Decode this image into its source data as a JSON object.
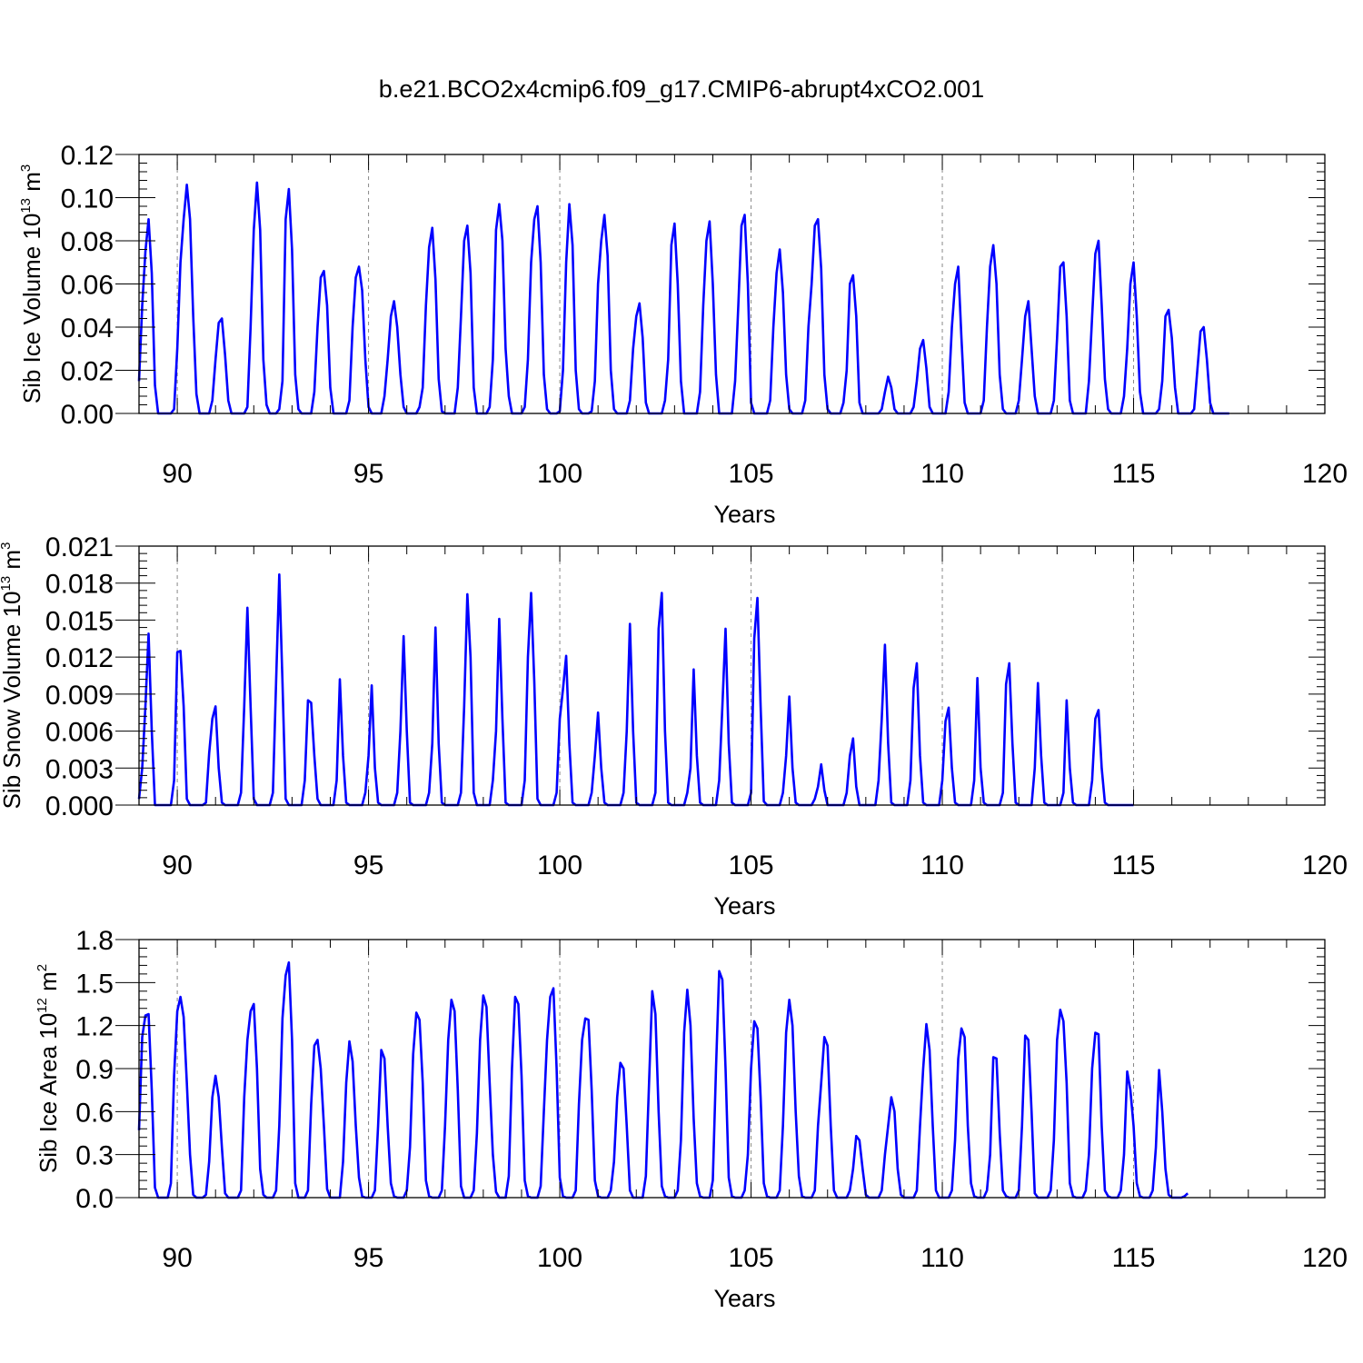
{
  "title": "b.e21.BCO2x4cmip6.f09_g17.CMIP6-abrupt4xCO2.001",
  "style": {
    "line_color": "#0000ff",
    "axis_color": "#000000",
    "grid_color": "#888888"
  },
  "chart_data": [
    {
      "type": "line",
      "ylabel": {
        "text": "Sib Ice Volume 10",
        "exp": "13",
        "unit_text": " m",
        "unit_exp": "3"
      },
      "xlabel": "Years",
      "xlim": [
        89,
        120
      ],
      "ylim": [
        0,
        0.12
      ],
      "xticks": [
        90,
        95,
        100,
        105,
        110,
        115,
        120
      ],
      "xtick_labels": [
        "90",
        "95",
        "100",
        "105",
        "110",
        "115",
        "120"
      ],
      "yticks": [
        0,
        0.02,
        0.04,
        0.06,
        0.08,
        0.1,
        0.12
      ],
      "ytick_labels": [
        "0.00",
        "0.02",
        "0.04",
        "0.06",
        "0.08",
        "0.10",
        "0.12"
      ],
      "grid": "vertical dashed at 5-year ticks",
      "start_year": 89.0,
      "series": [
        {
          "values": [
            0.015,
            0.05,
            0.075,
            0.09,
            0.065,
            0.013,
            0,
            0,
            0,
            0,
            0,
            0.002,
            0.03,
            0.07,
            0.09,
            0.106,
            0.09,
            0.045,
            0.009,
            0,
            0,
            0,
            0,
            0.006,
            0.025,
            0.042,
            0.044,
            0.027,
            0.006,
            0,
            0,
            0,
            0,
            0,
            0.003,
            0.04,
            0.085,
            0.107,
            0.085,
            0.025,
            0.004,
            0,
            0,
            0,
            0.002,
            0.015,
            0.09,
            0.104,
            0.076,
            0.018,
            0.002,
            0,
            0,
            0,
            0,
            0.01,
            0.04,
            0.063,
            0.066,
            0.05,
            0.012,
            0,
            0,
            0,
            0,
            0,
            0.006,
            0.04,
            0.063,
            0.068,
            0.057,
            0.025,
            0.003,
            0,
            0,
            0,
            0,
            0.008,
            0.025,
            0.045,
            0.052,
            0.04,
            0.018,
            0.003,
            0,
            0,
            0,
            0,
            0.003,
            0.012,
            0.05,
            0.077,
            0.086,
            0.062,
            0.016,
            0.001,
            0,
            0,
            0,
            0,
            0.012,
            0.045,
            0.08,
            0.087,
            0.065,
            0.012,
            0,
            0,
            0,
            0,
            0.003,
            0.025,
            0.085,
            0.097,
            0.08,
            0.03,
            0.008,
            0,
            0,
            0,
            0,
            0.003,
            0.025,
            0.07,
            0.09,
            0.096,
            0.07,
            0.018,
            0.002,
            0,
            0,
            0,
            0.001,
            0.02,
            0.07,
            0.097,
            0.078,
            0.02,
            0.002,
            0,
            0,
            0,
            0.001,
            0.015,
            0.06,
            0.08,
            0.092,
            0.073,
            0.02,
            0.002,
            0,
            0,
            0,
            0,
            0.006,
            0.03,
            0.045,
            0.051,
            0.035,
            0.005,
            0,
            0,
            0,
            0,
            0,
            0.006,
            0.025,
            0.078,
            0.088,
            0.06,
            0.015,
            0,
            0,
            0,
            0,
            0,
            0.01,
            0.05,
            0.08,
            0.089,
            0.06,
            0.018,
            0,
            0,
            0,
            0,
            0,
            0.015,
            0.05,
            0.087,
            0.092,
            0.06,
            0.005,
            0,
            0,
            0,
            0,
            0,
            0.006,
            0.04,
            0.065,
            0.076,
            0.056,
            0.018,
            0.002,
            0,
            0,
            0,
            0,
            0.006,
            0.04,
            0.06,
            0.087,
            0.09,
            0.067,
            0.018,
            0.002,
            0,
            0,
            0,
            0,
            0.005,
            0.02,
            0.06,
            0.064,
            0.045,
            0.005,
            0,
            0,
            0,
            0,
            0,
            0,
            0.002,
            0.01,
            0.017,
            0.012,
            0.002,
            0,
            0,
            0,
            0,
            0,
            0.003,
            0.015,
            0.03,
            0.034,
            0.021,
            0.003,
            0,
            0,
            0,
            0,
            0,
            0.01,
            0.04,
            0.06,
            0.068,
            0.035,
            0.005,
            0,
            0,
            0,
            0,
            0,
            0.006,
            0.04,
            0.068,
            0.078,
            0.06,
            0.018,
            0.002,
            0,
            0,
            0,
            0,
            0.006,
            0.025,
            0.045,
            0.052,
            0.03,
            0.008,
            0,
            0,
            0,
            0,
            0,
            0.006,
            0.035,
            0.068,
            0.07,
            0.045,
            0.006,
            0,
            0,
            0,
            0,
            0,
            0.015,
            0.045,
            0.074,
            0.08,
            0.05,
            0.016,
            0.002,
            0,
            0,
            0,
            0,
            0.008,
            0.03,
            0.06,
            0.07,
            0.045,
            0.01,
            0,
            0,
            0,
            0,
            0,
            0.002,
            0.015,
            0.045,
            0.048,
            0.035,
            0.012,
            0,
            0,
            0,
            0,
            0,
            0.002,
            0.02,
            0.038,
            0.04,
            0.025,
            0.005,
            0,
            0,
            0,
            0,
            0,
            0
          ]
        }
      ]
    },
    {
      "type": "line",
      "ylabel": {
        "text": "Sib Snow Volume 10",
        "exp": "13",
        "unit_text": " m",
        "unit_exp": "3"
      },
      "xlabel": "Years",
      "xlim": [
        89,
        120
      ],
      "ylim": [
        0,
        0.021
      ],
      "xticks": [
        90,
        95,
        100,
        105,
        110,
        115,
        120
      ],
      "xtick_labels": [
        "90",
        "95",
        "100",
        "105",
        "110",
        "115",
        "120"
      ],
      "yticks": [
        0,
        0.003,
        0.006,
        0.009,
        0.012,
        0.015,
        0.018,
        0.021
      ],
      "ytick_labels": [
        "0.000",
        "0.003",
        "0.006",
        "0.009",
        "0.012",
        "0.015",
        "0.018",
        "0.021"
      ],
      "grid": "vertical dashed at 5-year ticks",
      "start_year": 89.0,
      "series": [
        {
          "values": [
            0.0005,
            0.003,
            0.008,
            0.0139,
            0.006,
            0,
            0,
            0,
            0,
            0,
            0,
            0.002,
            0.0124,
            0.0125,
            0.008,
            0.0005,
            0,
            0,
            0,
            0,
            0,
            0.0002,
            0.0042,
            0.007,
            0.008,
            0.003,
            0.0002,
            0,
            0,
            0,
            0,
            0,
            0.001,
            0.008,
            0.016,
            0.008,
            0.0005,
            0,
            0,
            0,
            0,
            0,
            0.001,
            0.01,
            0.0187,
            0.01,
            0.0005,
            0,
            0,
            0,
            0,
            0,
            0.002,
            0.0085,
            0.0083,
            0.004,
            0.0005,
            0,
            0,
            0,
            0,
            0,
            0.002,
            0.0102,
            0.004,
            0.0002,
            0,
            0,
            0,
            0,
            0,
            0.001,
            0.004,
            0.0097,
            0.003,
            0.0002,
            0,
            0,
            0,
            0,
            0,
            0.001,
            0.006,
            0.0137,
            0.006,
            0.0002,
            0,
            0,
            0,
            0,
            0,
            0.001,
            0.005,
            0.0144,
            0.005,
            0.0002,
            0,
            0,
            0,
            0,
            0,
            0.001,
            0.008,
            0.0171,
            0.012,
            0.001,
            0,
            0,
            0,
            0,
            0,
            0.002,
            0.006,
            0.0151,
            0.007,
            0.0002,
            0,
            0,
            0,
            0,
            0,
            0.002,
            0.012,
            0.0172,
            0.01,
            0.0005,
            0,
            0,
            0,
            0,
            0,
            0.001,
            0.007,
            0.0094,
            0.0121,
            0.005,
            0.0002,
            0,
            0,
            0,
            0,
            0,
            0.001,
            0.004,
            0.0075,
            0.003,
            0.0002,
            0,
            0,
            0,
            0,
            0,
            0.001,
            0.006,
            0.0147,
            0.006,
            0.0002,
            0,
            0,
            0,
            0,
            0,
            0.001,
            0.0143,
            0.0172,
            0.006,
            0.0002,
            0,
            0,
            0,
            0,
            0,
            0.001,
            0.003,
            0.011,
            0.004,
            0.0002,
            0,
            0,
            0,
            0,
            0,
            0.002,
            0.008,
            0.0143,
            0.005,
            0.0002,
            0,
            0,
            0,
            0,
            0,
            0.001,
            0.0135,
            0.0168,
            0.008,
            0.0003,
            0,
            0,
            0,
            0,
            0,
            0.001,
            0.004,
            0.0088,
            0.003,
            0.0002,
            0,
            0,
            0,
            0,
            0,
            0.0005,
            0.0015,
            0.0033,
            0.0012,
            0,
            0,
            0,
            0,
            0,
            0,
            0.001,
            0.004,
            0.0054,
            0.0015,
            0,
            0,
            0,
            0,
            0,
            0,
            0.002,
            0.007,
            0.013,
            0.005,
            0.0002,
            0,
            0,
            0,
            0,
            0,
            0.002,
            0.0095,
            0.0115,
            0.004,
            0.0002,
            0,
            0,
            0,
            0,
            0,
            0.002,
            0.0068,
            0.0079,
            0.003,
            0.0002,
            0,
            0,
            0,
            0,
            0,
            0.002,
            0.0103,
            0.003,
            0.0002,
            0,
            0,
            0,
            0,
            0,
            0.001,
            0.0098,
            0.0115,
            0.005,
            0.0002,
            0,
            0,
            0,
            0,
            0,
            0.003,
            0.0099,
            0.004,
            0.0002,
            0,
            0,
            0,
            0,
            0,
            0.001,
            0.0085,
            0.003,
            0.0002,
            0,
            0,
            0,
            0,
            0,
            0.002,
            0.007,
            0.0077,
            0.003,
            0.0002,
            0,
            0,
            0,
            0,
            0,
            0,
            0,
            0,
            0
          ]
        }
      ]
    },
    {
      "type": "line",
      "ylabel": {
        "text": "Sib Ice Area 10",
        "exp": "12",
        "unit_text": " m",
        "unit_exp": "2"
      },
      "xlabel": "Years",
      "xlim": [
        89,
        120
      ],
      "ylim": [
        0,
        1.8
      ],
      "xticks": [
        90,
        95,
        100,
        105,
        110,
        115,
        120
      ],
      "xtick_labels": [
        "90",
        "95",
        "100",
        "105",
        "110",
        "115",
        "120"
      ],
      "yticks": [
        0,
        0.3,
        0.6,
        0.9,
        1.2,
        1.5,
        1.8
      ],
      "ytick_labels": [
        "0.0",
        "0.3",
        "0.6",
        "0.9",
        "1.2",
        "1.5",
        "1.8"
      ],
      "grid": "vertical dashed at 5-year ticks",
      "start_year": 89.0,
      "series": [
        {
          "values": [
            0.47,
            1.12,
            1.27,
            1.28,
            0.75,
            0.07,
            0,
            0,
            0,
            0,
            0.1,
            0.85,
            1.3,
            1.4,
            1.26,
            0.8,
            0.3,
            0.02,
            0,
            0,
            0,
            0.02,
            0.25,
            0.7,
            0.85,
            0.7,
            0.35,
            0.03,
            0,
            0,
            0,
            0,
            0.05,
            0.7,
            1.1,
            1.3,
            1.35,
            0.9,
            0.2,
            0.02,
            0,
            0,
            0,
            0.05,
            0.5,
            1.25,
            1.55,
            1.64,
            1.1,
            0.1,
            0,
            0,
            0,
            0.05,
            0.65,
            1.06,
            1.1,
            0.9,
            0.5,
            0.06,
            0,
            0,
            0,
            0,
            0.25,
            0.8,
            1.09,
            0.95,
            0.5,
            0.14,
            0.01,
            0,
            0,
            0,
            0.05,
            0.5,
            1.03,
            0.97,
            0.5,
            0.1,
            0.01,
            0,
            0,
            0,
            0.05,
            0.35,
            1,
            1.29,
            1.24,
            0.8,
            0.12,
            0.01,
            0,
            0,
            0,
            0.05,
            0.5,
            1.1,
            1.38,
            1.3,
            0.75,
            0.08,
            0,
            0,
            0,
            0.05,
            0.45,
            1.1,
            1.41,
            1.33,
            0.8,
            0.3,
            0.04,
            0,
            0,
            0,
            0.15,
            0.9,
            1.4,
            1.35,
            0.85,
            0.12,
            0.01,
            0,
            0,
            0,
            0.08,
            0.6,
            1.1,
            1.4,
            1.46,
            0.9,
            0.14,
            0.01,
            0,
            0,
            0,
            0.05,
            0.65,
            1.1,
            1.25,
            1.24,
            0.75,
            0.12,
            0.01,
            0,
            0,
            0,
            0.05,
            0.25,
            0.7,
            0.94,
            0.9,
            0.5,
            0.05,
            0,
            0,
            0,
            0,
            0.15,
            0.8,
            1.44,
            1.28,
            0.6,
            0.08,
            0.01,
            0,
            0,
            0,
            0.05,
            0.4,
            1.15,
            1.45,
            1.2,
            0.55,
            0.1,
            0.01,
            0,
            0,
            0,
            0.12,
            0.9,
            1.58,
            1.52,
            0.9,
            0.14,
            0.01,
            0,
            0,
            0,
            0.05,
            0.3,
            0.9,
            1.23,
            1.18,
            0.7,
            0.1,
            0.01,
            0,
            0,
            0,
            0.05,
            0.5,
            1.15,
            1.38,
            1.2,
            0.6,
            0.15,
            0.01,
            0,
            0,
            0,
            0.05,
            0.5,
            0.8,
            1.12,
            1.06,
            0.5,
            0.05,
            0,
            0,
            0,
            0,
            0.05,
            0.2,
            0.43,
            0.4,
            0.2,
            0.02,
            0,
            0,
            0,
            0,
            0.05,
            0.3,
            0.5,
            0.7,
            0.6,
            0.2,
            0.02,
            0,
            0,
            0,
            0,
            0.05,
            0.5,
            0.9,
            1.21,
            1.03,
            0.5,
            0.05,
            0,
            0,
            0,
            0,
            0.05,
            0.4,
            0.97,
            1.18,
            1.12,
            0.5,
            0.1,
            0.01,
            0,
            0,
            0,
            0.05,
            0.3,
            0.98,
            0.97,
            0.45,
            0.05,
            0.01,
            0,
            0,
            0,
            0.05,
            0.5,
            1.13,
            1.1,
            0.6,
            0.03,
            0,
            0,
            0,
            0,
            0.05,
            0.4,
            1.1,
            1.31,
            1.23,
            0.8,
            0.1,
            0.01,
            0,
            0,
            0,
            0.05,
            0.3,
            0.9,
            1.15,
            1.14,
            0.5,
            0.05,
            0.01,
            0,
            0,
            0,
            0.05,
            0.3,
            0.88,
            0.75,
            0.5,
            0.1,
            0.01,
            0,
            0,
            0,
            0.05,
            0.35,
            0.89,
            0.6,
            0.2,
            0.02,
            0,
            0,
            0,
            0,
            0.01,
            0.03
          ]
        }
      ]
    }
  ]
}
